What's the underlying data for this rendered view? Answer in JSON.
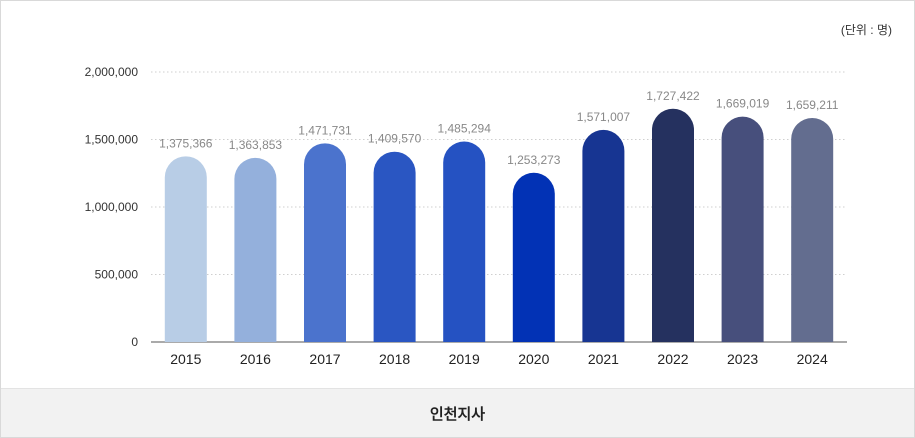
{
  "unit_label": "(단위 : 명)",
  "footer_label": "인천지사",
  "chart_data": {
    "type": "bar",
    "title": "",
    "xlabel": "",
    "ylabel": "",
    "ylim": [
      0,
      2000000
    ],
    "y_ticks": [
      {
        "value": 0,
        "label": "0"
      },
      {
        "value": 500000,
        "label": "500,000"
      },
      {
        "value": 1000000,
        "label": "1,000,000"
      },
      {
        "value": 1500000,
        "label": "1,500,000"
      },
      {
        "value": 2000000,
        "label": "2,000,000"
      }
    ],
    "grid": true,
    "categories": [
      "2015",
      "2016",
      "2017",
      "2018",
      "2019",
      "2020",
      "2021",
      "2022",
      "2023",
      "2024"
    ],
    "values": [
      1375366,
      1363853,
      1471731,
      1409570,
      1485294,
      1253273,
      1571007,
      1727422,
      1669019,
      1659211
    ],
    "value_labels": [
      "1,375,366",
      "1,363,853",
      "1,471,731",
      "1,409,570",
      "1,485,294",
      "1,253,273",
      "1,571,007",
      "1,727,422",
      "1,669,019",
      "1,659,211"
    ],
    "colors": [
      "#b8cde6",
      "#94b0dc",
      "#4b73cd",
      "#2a56c2",
      "#2552c2",
      "#0232b5",
      "#173592",
      "#25315f",
      "#474f7c",
      "#636d8f"
    ]
  }
}
